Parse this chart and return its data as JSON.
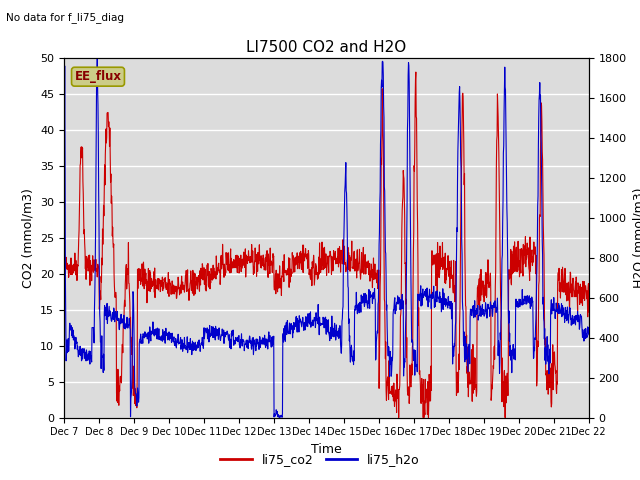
{
  "title": "LI7500 CO2 and H2O",
  "subtitle": "No data for f_li75_diag",
  "xlabel": "Time",
  "ylabel_left": "CO2 (mmol/m3)",
  "ylabel_right": "H2O (mmol/m3)",
  "ylim_left": [
    0,
    50
  ],
  "ylim_right": [
    0,
    1800
  ],
  "xtick_labels": [
    "Dec 7",
    "Dec 8",
    "Dec 9",
    "Dec 10",
    "Dec 11",
    "Dec 12",
    "Dec 13",
    "Dec 14",
    "Dec 15",
    "Dec 16",
    "Dec 17",
    "Dec 18",
    "Dec 19",
    "Dec 20",
    "Dec 21",
    "Dec 22"
  ],
  "plot_bg_color": "#dcdcdc",
  "co2_color": "#cc0000",
  "h2o_color": "#0000cc",
  "legend_box_facecolor": "#cccc88",
  "legend_box_edgecolor": "#999900",
  "legend_box_text": "EE_flux",
  "legend_entries": [
    "li75_co2",
    "li75_h2o"
  ],
  "linewidth": 0.8,
  "title_fontsize": 11,
  "axis_fontsize": 9,
  "tick_fontsize": 8
}
